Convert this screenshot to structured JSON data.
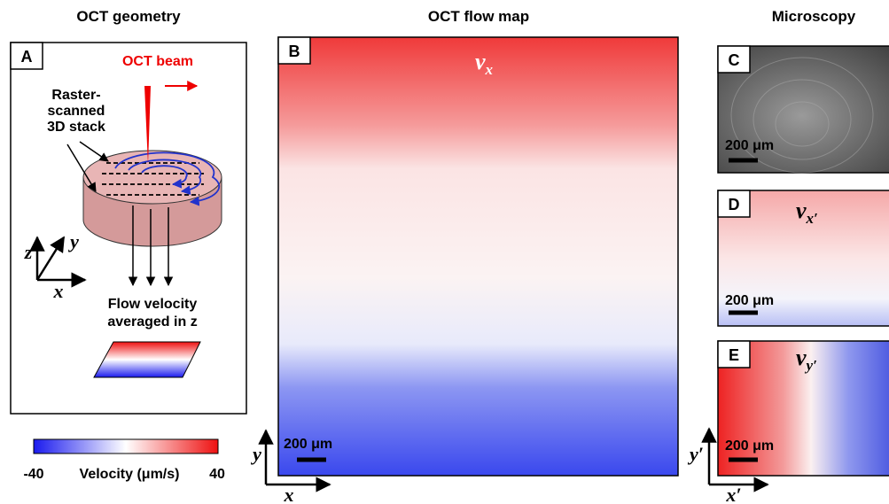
{
  "titles": [
    "OCT geometry",
    "OCT flow map",
    "Microscopy"
  ],
  "panels": [
    {
      "letter": "A",
      "beam": "OCT beam",
      "stack": [
        "Raster-",
        "scanned",
        "3D stack"
      ],
      "axes": {
        "z": "z",
        "y": "y",
        "x": "x"
      },
      "flow": [
        "Flow velocity",
        "averaged in z"
      ]
    },
    {
      "letter": "B",
      "label": {
        "base": "v",
        "sub": "x"
      },
      "scale_bar": "200 μm",
      "axes": {
        "y": "y",
        "x": "x"
      }
    },
    {
      "letter": "C",
      "scale_bar": "200 μm"
    },
    {
      "letter": "D",
      "label": {
        "base": "v",
        "sub": "x′"
      },
      "scale_bar": "200 μm"
    },
    {
      "letter": "E",
      "label": {
        "base": "v",
        "sub": "y′"
      },
      "scale_bar": "200 μm",
      "axes": {
        "y": "y′",
        "x": "x′"
      }
    }
  ],
  "colorbar": {
    "min": -40,
    "label": "Velocity (μm/s)",
    "max": 40
  }
}
